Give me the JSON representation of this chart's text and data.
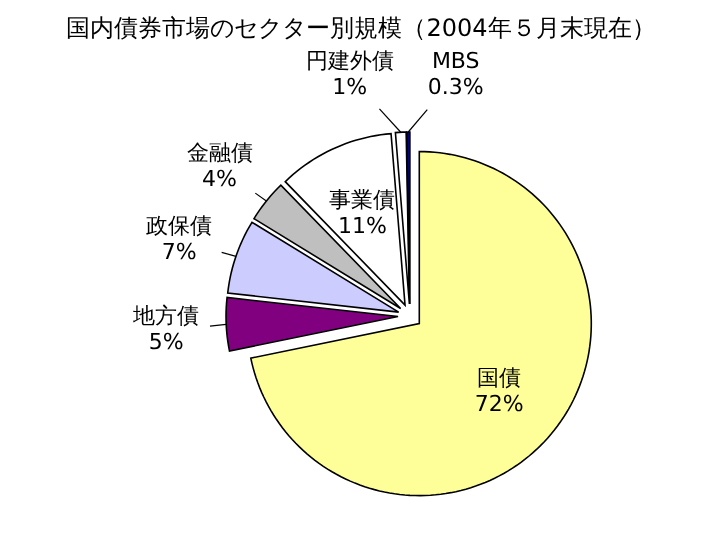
{
  "chart_data": {
    "type": "pie",
    "title": "国内債券市場のセクター別規模（2004年５月末現在）",
    "categories": [
      "国債",
      "地方債",
      "政保債",
      "金融債",
      "事業債",
      "円建外債",
      "MBS"
    ],
    "values": [
      72,
      5,
      7,
      4,
      11,
      1,
      0.3
    ],
    "value_labels": [
      "72%",
      "5%",
      "7%",
      "4%",
      "11%",
      "1%",
      "0.3%"
    ],
    "colors": [
      "#ffff99",
      "#800080",
      "#ccccff",
      "#bfbfbf",
      "#ffffff",
      "#ffffff",
      "#000080"
    ]
  }
}
